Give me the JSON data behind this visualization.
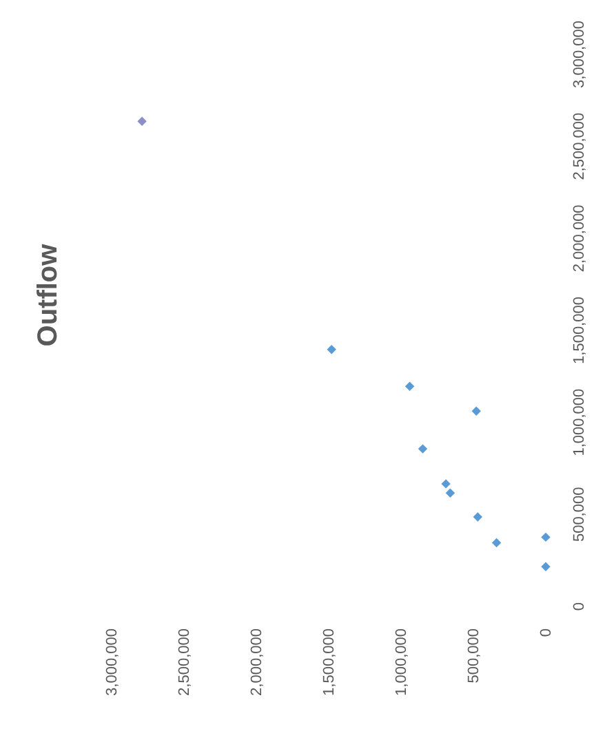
{
  "chart_data": {
    "type": "scatter",
    "title": "Outflow",
    "x": [
      1480000,
      940000,
      480000,
      850000,
      690000,
      660000,
      470000,
      340000,
      0,
      0,
      2790000
    ],
    "values": [
      1400000,
      1200000,
      1065000,
      860000,
      670000,
      620000,
      490000,
      350000,
      380000,
      220000,
      2640000
    ],
    "colors": [
      "#5b9bd5",
      "#5b9bd5",
      "#5b9bd5",
      "#5b9bd5",
      "#5b9bd5",
      "#5b9bd5",
      "#5b9bd5",
      "#5b9bd5",
      "#5b9bd5",
      "#5b9bd5",
      "#8e8ec8"
    ],
    "xlim": [
      3000000,
      0
    ],
    "xticks": [
      0,
      {
        "value": 500000,
        "label": "500,000"
      },
      {
        "value": 1000000,
        "label": "1,000,000"
      },
      {
        "value": 1500000,
        "label": "1,500,000"
      },
      {
        "value": 2000000,
        "label": "2,000,000"
      },
      {
        "value": 2500000,
        "label": "2,500,000"
      },
      {
        "value": 3000000,
        "label": "3,000,000"
      }
    ],
    "ylim": [
      0,
      3000000
    ],
    "yticks": [
      0,
      {
        "value": 500000,
        "label": "500,000"
      },
      {
        "value": 1000000,
        "label": "1,000,000"
      },
      {
        "value": 1500000,
        "label": "1,500,000"
      },
      {
        "value": 2000000,
        "label": "2,000,000"
      },
      {
        "value": 2500000,
        "label": "2,500,000"
      },
      {
        "value": 3000000,
        "label": "3,000,000"
      }
    ],
    "marker": "diamond"
  }
}
